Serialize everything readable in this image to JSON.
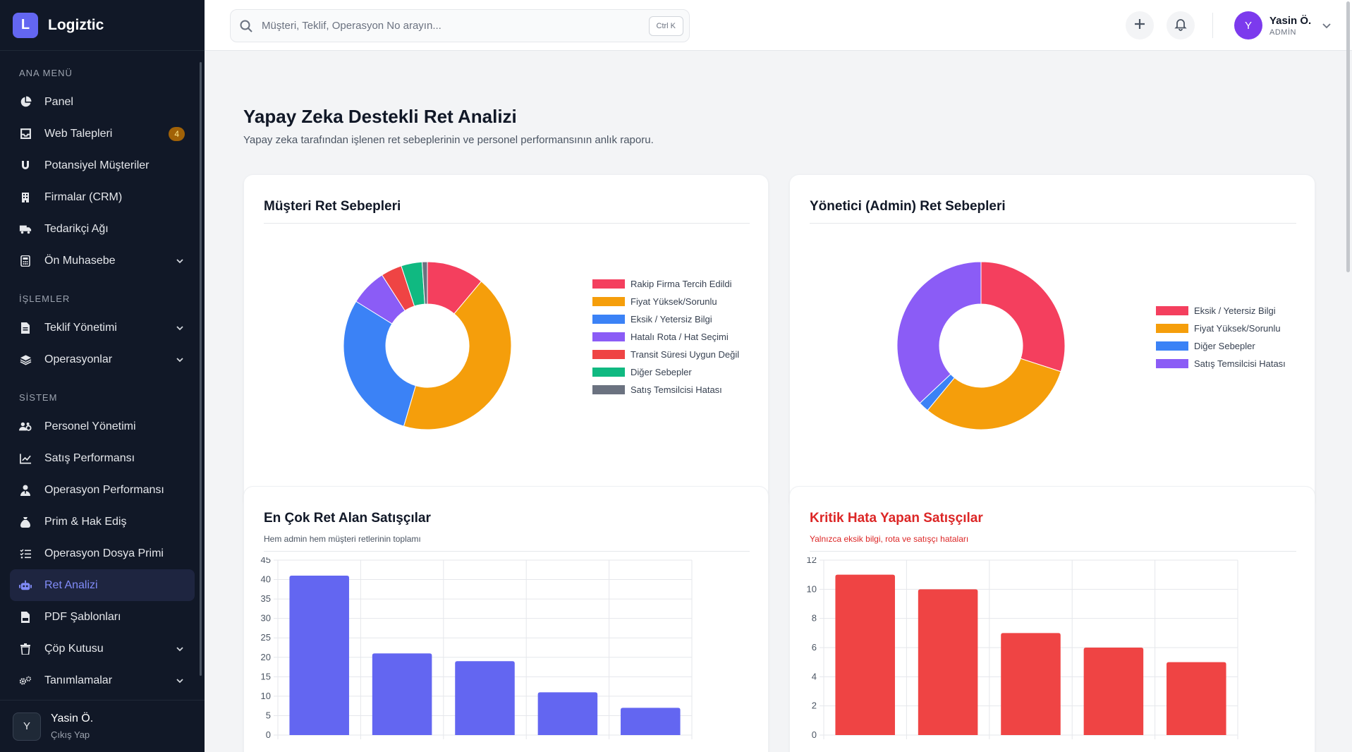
{
  "app": {
    "logo_letter": "L",
    "name": "Logiztic"
  },
  "sidebar": {
    "sections": [
      {
        "title": "ANA MENÜ",
        "items": [
          {
            "label": "Panel",
            "icon": "pie-chart-icon"
          },
          {
            "label": "Web Talepleri",
            "icon": "inbox-icon",
            "badge": "4"
          },
          {
            "label": "Potansiyel Müşteriler",
            "icon": "magnet-icon"
          },
          {
            "label": "Firmalar (CRM)",
            "icon": "building-icon"
          },
          {
            "label": "Tedarikçi Ağı",
            "icon": "truck-icon"
          },
          {
            "label": "Ön Muhasebe",
            "icon": "calculator-icon",
            "expandable": true
          }
        ]
      },
      {
        "title": "İŞLEMLER",
        "items": [
          {
            "label": "Teklif Yönetimi",
            "icon": "file-invoice-icon",
            "expandable": true
          },
          {
            "label": "Operasyonlar",
            "icon": "layers-icon",
            "expandable": true
          }
        ]
      },
      {
        "title": "SİSTEM",
        "items": [
          {
            "label": "Personel Yönetimi",
            "icon": "users-gear-icon"
          },
          {
            "label": "Satış Performansı",
            "icon": "line-chart-icon"
          },
          {
            "label": "Operasyon Performansı",
            "icon": "user-tie-icon"
          },
          {
            "label": "Prim & Hak Ediş",
            "icon": "money-bag-icon"
          },
          {
            "label": "Operasyon Dosya Primi",
            "icon": "list-check-icon"
          },
          {
            "label": "Ret Analizi",
            "icon": "robot-icon",
            "active": true
          },
          {
            "label": "PDF Şablonları",
            "icon": "file-pdf-icon"
          },
          {
            "label": "Çöp Kutusu",
            "icon": "trash-icon",
            "expandable": true
          },
          {
            "label": "Tanımlamalar",
            "icon": "gears-icon",
            "expandable": true
          }
        ]
      }
    ],
    "user": {
      "initial": "Y",
      "name": "Yasin Ö.",
      "logout": "Çıkış Yap"
    }
  },
  "header": {
    "search_placeholder": "Müşteri, Teklif, Operasyon No arayın...",
    "search_shortcut": "Ctrl K",
    "user": {
      "initial": "Y",
      "name": "Yasin Ö.",
      "role": "ADMİN"
    }
  },
  "page": {
    "title": "Yapay Zeka Destekli Ret Analizi",
    "subtitle": "Yapay zeka tarafından işlenen ret sebeplerinin ve personel performansının anlık raporu."
  },
  "cards": {
    "customer": {
      "title": "Müşteri Ret Sebepleri"
    },
    "admin": {
      "title": "Yönetici (Admin) Ret Sebepleri"
    },
    "top_reject": {
      "title": "En Çok Ret Alan Satışçılar",
      "subtitle": "Hem admin hem müşteri retlerinin toplamı"
    },
    "critical": {
      "title": "Kritik Hata Yapan Satışçılar",
      "subtitle": "Yalnızca eksik bilgi, rota ve satışçı hataları"
    }
  },
  "chart_data": [
    {
      "type": "pie",
      "title": "Müşteri Ret Sebepleri",
      "legend_position": "right",
      "labels": [
        "Rakip Firma Tercih Edildi",
        "Fiyat Yüksek/Sorunlu",
        "Eksik / Yetersiz Bilgi",
        "Hatalı Rota / Hat Seçimi",
        "Transit Süresi Uygun Değil",
        "Diğer Sebepler",
        "Satış Temsilcisi Hatası"
      ],
      "values": [
        11,
        43,
        29,
        7,
        4,
        4,
        1
      ],
      "colors": [
        "#f43f5e",
        "#f59e0b",
        "#3b82f6",
        "#8b5cf6",
        "#ef4444",
        "#10b981",
        "#6b7280"
      ]
    },
    {
      "type": "pie",
      "title": "Yönetici (Admin) Ret Sebepleri",
      "legend_position": "right",
      "labels": [
        "Eksik / Yetersiz Bilgi",
        "Fiyat Yüksek/Sorunlu",
        "Diğer Sebepler",
        "Satış Temsilcisi Hatası"
      ],
      "values": [
        30,
        31,
        2,
        37
      ],
      "colors": [
        "#f43f5e",
        "#f59e0b",
        "#3b82f6",
        "#8b5cf6"
      ]
    },
    {
      "type": "bar",
      "title": "En Çok Ret Alan Satışçılar",
      "categories": [
        "",
        "",
        "",
        "",
        ""
      ],
      "values": [
        41,
        21,
        19,
        11,
        7
      ],
      "ylim": [
        0,
        45
      ],
      "yticks": [
        "0",
        "5",
        "10",
        "15",
        "20",
        "25",
        "30",
        "35",
        "40",
        "45"
      ],
      "grid": true,
      "color": "#6366f1"
    },
    {
      "type": "bar",
      "title": "Kritik Hata Yapan Satışçılar",
      "categories": [
        "",
        "",
        "",
        "",
        ""
      ],
      "values": [
        11,
        10,
        7,
        6,
        5
      ],
      "ylim": [
        0,
        12
      ],
      "yticks": [
        "0",
        "2",
        "4",
        "6",
        "8",
        "10",
        "12"
      ],
      "grid": true,
      "color": "#ef4444"
    }
  ]
}
